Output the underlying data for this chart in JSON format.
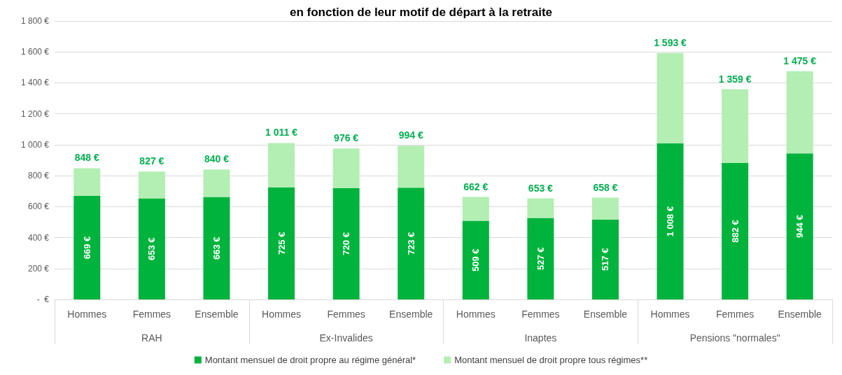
{
  "chart_data": {
    "type": "bar",
    "title": "en fonction de leur motif de départ à la retraite",
    "stacked": true,
    "categories": [
      "Hommes",
      "Femmes",
      "Ensemble",
      "Hommes",
      "Femmes",
      "Ensemble",
      "Hommes",
      "Femmes",
      "Ensemble",
      "Hommes",
      "Femmes",
      "Ensemble"
    ],
    "annotations": [
      "RAH",
      "Ex-Invalides",
      "Inaptes",
      "Pensions \"normales\""
    ],
    "series": [
      {
        "name": "Montant mensuel de droit propre au régime général*",
        "color": "#00b33c",
        "values": [
          669,
          653,
          663,
          725,
          720,
          723,
          509,
          527,
          517,
          1008,
          882,
          944
        ],
        "value_labels": [
          "669 €",
          "653 €",
          "663 €",
          "725 €",
          "720 €",
          "723 €",
          "509 €",
          "527 €",
          "517 €",
          "1 008 €",
          "882 €",
          "944 €"
        ]
      },
      {
        "name": "Montant mensuel de droit propre tous régimes**",
        "color": "#b3eeb3",
        "values": [
          179,
          174,
          177,
          286,
          256,
          271,
          153,
          126,
          141,
          585,
          477,
          531
        ]
      }
    ],
    "totals": [
      "848 €",
      "827 €",
      "840 €",
      "1 011 €",
      "976 €",
      "994 €",
      "662 €",
      "653 €",
      "658 €",
      "1 593 €",
      "1 359 €",
      "1 475 €"
    ],
    "ylim": [
      0,
      1800
    ],
    "yticks": [
      {
        "value": 0,
        "label": "-  €"
      },
      {
        "value": 200,
        "label": "200 €"
      },
      {
        "value": 400,
        "label": "400 €"
      },
      {
        "value": 600,
        "label": "600 €"
      },
      {
        "value": 800,
        "label": "800 €"
      },
      {
        "value": 1000,
        "label": "1 000 €"
      },
      {
        "value": 1200,
        "label": "1 200 €"
      },
      {
        "value": 1400,
        "label": "1 400 €"
      },
      {
        "value": 1600,
        "label": "1 600 €"
      },
      {
        "value": 1800,
        "label": "1 800 €"
      }
    ],
    "grid": "y",
    "legend": "bottom"
  }
}
